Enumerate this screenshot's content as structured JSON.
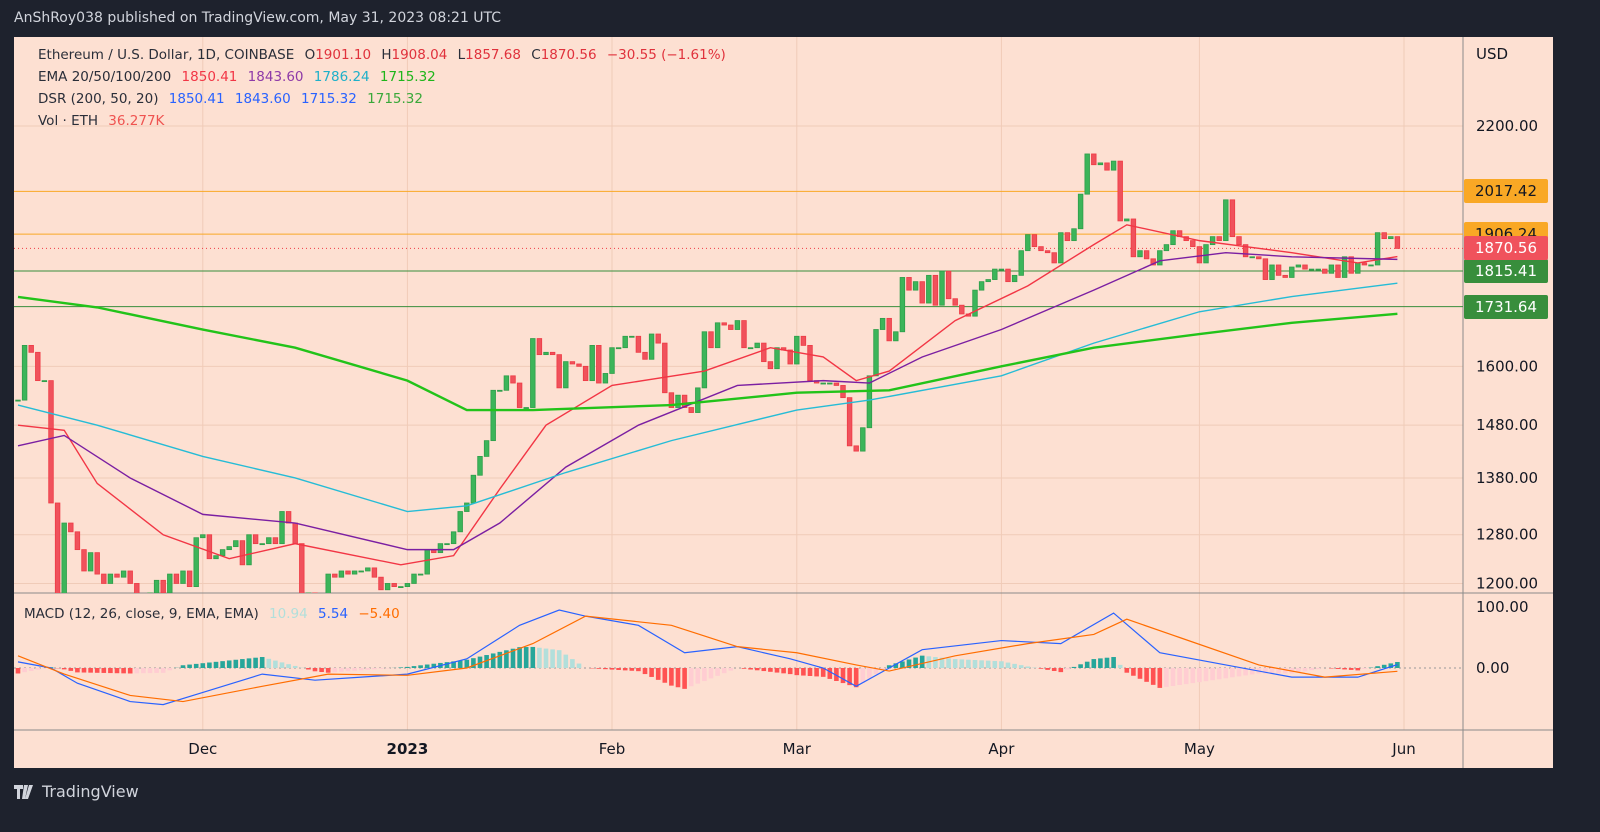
{
  "header": {
    "published": "AnShRoy038 published on TradingView.com, May 31, 2023 08:21 UTC"
  },
  "brand": "TradingView",
  "legend": {
    "symbol": "Ethereum / U.S. Dollar, 1D, COINBASE",
    "o_label": "O",
    "o": "1901.10",
    "h_label": "H",
    "h": "1908.04",
    "l_label": "L",
    "l": "1857.68",
    "c_label": "C",
    "c": "1870.56",
    "change": "−30.55 (−1.61%)",
    "ema_label": "EMA 20/50/100/200",
    "ema": [
      "1850.41",
      "1843.60",
      "1786.24",
      "1715.32"
    ],
    "dsr_label": "DSR (200, 50, 20)",
    "dsr": [
      "1850.41",
      "1843.60",
      "1715.32",
      "1715.32"
    ],
    "vol_label": "Vol · ETH",
    "vol": "36.277K",
    "macd_label": "MACD (12, 26, close, 9, EMA, EMA)",
    "macd": [
      "10.94",
      "5.54",
      "−5.40"
    ]
  },
  "colors": {
    "up": "#2e9e4a",
    "down": "#ee3b45",
    "ema20": "#f23645",
    "ema50": "#7b1fa2",
    "ema100": "#26bcd6",
    "ema200": "#22c31a",
    "macd": "#2962ff",
    "signal": "#ff6d00",
    "resistance": "#f9a825",
    "support": "#388e3c",
    "bg": "#fde0d2"
  },
  "chart_data": {
    "type": "candlestick",
    "price_axis": {
      "unit": "USD",
      "scale": "log",
      "ticks": [
        "2200.00",
        "1600.00",
        "1480.00",
        "1380.00",
        "1280.00",
        "1200.00"
      ]
    },
    "time_axis": {
      "ticks": [
        "Dec",
        "2023",
        "Feb",
        "Mar",
        "Apr",
        "May",
        "Jun"
      ]
    },
    "macd_axis": {
      "ticks": [
        "100.00",
        "0.00"
      ]
    },
    "start_date": "2022-11-03",
    "close": [
      1530,
      1645,
      1630,
      1570,
      1570,
      1335,
      1100,
      1300,
      1285,
      1255,
      1220,
      1250,
      1215,
      1200,
      1215,
      1210,
      1220,
      1200,
      1140,
      1110,
      1185,
      1205,
      1185,
      1215,
      1200,
      1220,
      1195,
      1275,
      1280,
      1240,
      1245,
      1255,
      1260,
      1270,
      1230,
      1280,
      1265,
      1265,
      1275,
      1265,
      1320,
      1300,
      1265,
      1165,
      1185,
      1180,
      1165,
      1215,
      1210,
      1220,
      1215,
      1220,
      1220,
      1225,
      1210,
      1190,
      1200,
      1195,
      1195,
      1200,
      1215,
      1215,
      1255,
      1250,
      1265,
      1265,
      1285,
      1320,
      1335,
      1385,
      1420,
      1450,
      1550,
      1550,
      1580,
      1565,
      1515,
      1515,
      1660,
      1625,
      1630,
      1625,
      1555,
      1610,
      1605,
      1600,
      1570,
      1645,
      1565,
      1585,
      1640,
      1640,
      1665,
      1665,
      1630,
      1615,
      1670,
      1650,
      1545,
      1515,
      1540,
      1515,
      1505,
      1555,
      1675,
      1640,
      1695,
      1690,
      1680,
      1700,
      1640,
      1640,
      1650,
      1610,
      1595,
      1640,
      1635,
      1605,
      1665,
      1645,
      1570,
      1565,
      1565,
      1565,
      1560,
      1535,
      1440,
      1430,
      1475,
      1580,
      1680,
      1705,
      1655,
      1675,
      1800,
      1770,
      1790,
      1740,
      1805,
      1735,
      1815,
      1750,
      1735,
      1715,
      1710,
      1770,
      1790,
      1795,
      1820,
      1820,
      1790,
      1805,
      1865,
      1905,
      1875,
      1865,
      1860,
      1835,
      1910,
      1890,
      1920,
      2010,
      2120,
      2090,
      2095,
      2075,
      2100,
      1940,
      1945,
      1850,
      1865,
      1845,
      1830,
      1865,
      1880,
      1915,
      1900,
      1890,
      1875,
      1835,
      1880,
      1900,
      1890,
      1995,
      1900,
      1880,
      1850,
      1850,
      1845,
      1795,
      1830,
      1805,
      1800,
      1825,
      1830,
      1820,
      1820,
      1820,
      1810,
      1830,
      1800,
      1850,
      1810,
      1835,
      1830,
      1830,
      1910,
      1895,
      1900,
      1870.56
    ],
    "ema": [
      {
        "name": "EMA 20",
        "pts": [
          [
            "2022-11-03",
            1480
          ],
          [
            "2022-11-10",
            1470
          ],
          [
            "2022-11-15",
            1370
          ],
          [
            "2022-11-25",
            1280
          ],
          [
            "2022-12-05",
            1240
          ],
          [
            "2022-12-15",
            1265
          ],
          [
            "2022-12-31",
            1230
          ],
          [
            "2023-01-08",
            1245
          ],
          [
            "2023-01-15",
            1360
          ],
          [
            "2023-01-22",
            1480
          ],
          [
            "2023-02-01",
            1560
          ],
          [
            "2023-02-15",
            1590
          ],
          [
            "2023-02-25",
            1640
          ],
          [
            "2023-03-05",
            1620
          ],
          [
            "2023-03-10",
            1570
          ],
          [
            "2023-03-15",
            1590
          ],
          [
            "2023-03-25",
            1700
          ],
          [
            "2023-04-05",
            1780
          ],
          [
            "2023-04-15",
            1880
          ],
          [
            "2023-04-20",
            1930
          ],
          [
            "2023-05-01",
            1890
          ],
          [
            "2023-05-15",
            1860
          ],
          [
            "2023-05-25",
            1835
          ],
          [
            "2023-05-31",
            1850.41
          ]
        ]
      },
      {
        "name": "EMA 50",
        "pts": [
          [
            "2022-11-03",
            1440
          ],
          [
            "2022-11-10",
            1460
          ],
          [
            "2022-11-20",
            1380
          ],
          [
            "2022-12-01",
            1315
          ],
          [
            "2022-12-15",
            1300
          ],
          [
            "2023-01-01",
            1255
          ],
          [
            "2023-01-08",
            1255
          ],
          [
            "2023-01-15",
            1300
          ],
          [
            "2023-01-25",
            1400
          ],
          [
            "2023-02-05",
            1480
          ],
          [
            "2023-02-20",
            1560
          ],
          [
            "2023-03-05",
            1570
          ],
          [
            "2023-03-12",
            1565
          ],
          [
            "2023-03-20",
            1620
          ],
          [
            "2023-04-01",
            1680
          ],
          [
            "2023-04-15",
            1770
          ],
          [
            "2023-04-25",
            1840
          ],
          [
            "2023-05-05",
            1860
          ],
          [
            "2023-05-15",
            1850
          ],
          [
            "2023-05-31",
            1843.6
          ]
        ]
      },
      {
        "name": "EMA 100",
        "pts": [
          [
            "2022-11-03",
            1520
          ],
          [
            "2022-11-15",
            1480
          ],
          [
            "2022-12-01",
            1420
          ],
          [
            "2022-12-15",
            1380
          ],
          [
            "2023-01-01",
            1320
          ],
          [
            "2023-01-10",
            1330
          ],
          [
            "2023-01-25",
            1390
          ],
          [
            "2023-02-10",
            1450
          ],
          [
            "2023-03-01",
            1510
          ],
          [
            "2023-03-12",
            1530
          ],
          [
            "2023-04-01",
            1580
          ],
          [
            "2023-04-15",
            1650
          ],
          [
            "2023-05-01",
            1720
          ],
          [
            "2023-05-15",
            1755
          ],
          [
            "2023-05-31",
            1786.24
          ]
        ]
      },
      {
        "name": "EMA 200",
        "pts": [
          [
            "2022-11-03",
            1754
          ],
          [
            "2022-11-15",
            1730
          ],
          [
            "2022-12-01",
            1680
          ],
          [
            "2022-12-15",
            1640
          ],
          [
            "2023-01-01",
            1570
          ],
          [
            "2023-01-10",
            1510
          ],
          [
            "2023-01-20",
            1510
          ],
          [
            "2023-02-10",
            1520
          ],
          [
            "2023-03-01",
            1545
          ],
          [
            "2023-03-15",
            1550
          ],
          [
            "2023-04-01",
            1600
          ],
          [
            "2023-04-15",
            1640
          ],
          [
            "2023-05-01",
            1670
          ],
          [
            "2023-05-15",
            1695
          ],
          [
            "2023-05-31",
            1715.32
          ]
        ]
      }
    ],
    "hlines": [
      {
        "value": 2017.42,
        "label": "2017.42",
        "kind": "resistance"
      },
      {
        "value": 1906.24,
        "label": "1906.24",
        "kind": "resistance"
      },
      {
        "value": 1815.41,
        "label": "1815.41",
        "kind": "support"
      },
      {
        "value": 1731.64,
        "label": "1731.64",
        "kind": "support"
      }
    ],
    "last": {
      "value": 1870.56,
      "label": "1870.56"
    },
    "macd": {
      "macd": [
        [
          "2022-11-03",
          10
        ],
        [
          "2022-11-08",
          0
        ],
        [
          "2022-11-12",
          -25
        ],
        [
          "2022-11-20",
          -55
        ],
        [
          "2022-11-25",
          -60
        ],
        [
          "2022-12-01",
          -40
        ],
        [
          "2022-12-10",
          -10
        ],
        [
          "2022-12-18",
          -20
        ],
        [
          "2022-12-25",
          -15
        ],
        [
          "2023-01-01",
          -10
        ],
        [
          "2023-01-10",
          15
        ],
        [
          "2023-01-18",
          70
        ],
        [
          "2023-01-24",
          95
        ],
        [
          "2023-01-28",
          85
        ],
        [
          "2023-02-05",
          70
        ],
        [
          "2023-02-12",
          25
        ],
        [
          "2023-02-20",
          35
        ],
        [
          "2023-02-28",
          15
        ],
        [
          "2023-03-05",
          0
        ],
        [
          "2023-03-10",
          -30
        ],
        [
          "2023-03-15",
          0
        ],
        [
          "2023-03-20",
          30
        ],
        [
          "2023-04-01",
          45
        ],
        [
          "2023-04-10",
          40
        ],
        [
          "2023-04-18",
          90
        ],
        [
          "2023-04-25",
          25
        ],
        [
          "2023-05-05",
          5
        ],
        [
          "2023-05-15",
          -15
        ],
        [
          "2023-05-25",
          -15
        ],
        [
          "2023-05-31",
          5.54
        ]
      ],
      "signal": [
        [
          "2022-11-03",
          20
        ],
        [
          "2022-11-10",
          -10
        ],
        [
          "2022-11-20",
          -45
        ],
        [
          "2022-11-28",
          -55
        ],
        [
          "2022-12-10",
          -30
        ],
        [
          "2022-12-20",
          -10
        ],
        [
          "2023-01-01",
          -12
        ],
        [
          "2023-01-10",
          0
        ],
        [
          "2023-01-20",
          40
        ],
        [
          "2023-01-28",
          85
        ],
        [
          "2023-02-10",
          70
        ],
        [
          "2023-02-20",
          35
        ],
        [
          "2023-03-01",
          25
        ],
        [
          "2023-03-10",
          5
        ],
        [
          "2023-03-15",
          -5
        ],
        [
          "2023-03-25",
          20
        ],
        [
          "2023-04-05",
          40
        ],
        [
          "2023-04-15",
          55
        ],
        [
          "2023-04-20",
          80
        ],
        [
          "2023-04-28",
          50
        ],
        [
          "2023-05-10",
          5
        ],
        [
          "2023-05-20",
          -15
        ],
        [
          "2023-05-31",
          -5.4
        ]
      ]
    }
  }
}
